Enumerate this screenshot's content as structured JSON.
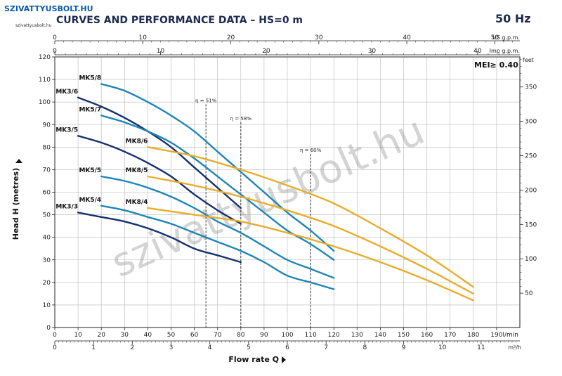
{
  "header": {
    "logo_text": "SZIVATTYUSBOLT.HU",
    "logo_sub": "szivattyusbolt.hu",
    "title": "CURVES AND PERFORMANCE DATA  –  HS=0 m",
    "frequency": "50 Hz",
    "mei": "MEI≥ 0.40",
    "watermark": "szivattyusbolt.hu"
  },
  "colors": {
    "mk3": "#16306e",
    "mk5": "#1e86b8",
    "mk8": "#e8ad2b",
    "grid": "#b8b8b8",
    "eta": "#333333",
    "text": "#1d2a4f"
  },
  "chart_data": {
    "type": "line",
    "xlabel": "Flow rate Q",
    "ylabel": "Head H (metres)",
    "xlim": [
      0,
      200
    ],
    "ylim": [
      0,
      120
    ],
    "x_ticks": [
      0,
      10,
      20,
      30,
      40,
      50,
      60,
      70,
      80,
      90,
      100,
      110,
      120,
      130,
      140,
      150,
      160,
      170,
      180,
      190
    ],
    "x_unit": "l/min",
    "y_ticks": [
      0,
      10,
      20,
      30,
      40,
      50,
      60,
      70,
      80,
      90,
      100,
      110,
      120
    ],
    "secondary_axes": {
      "us_gpm": {
        "label": "US g.p.m.",
        "ticks": [
          0,
          10,
          20,
          30,
          40,
          50
        ],
        "factor": 3.785
      },
      "imp_gpm": {
        "label": "Imp g.p.m.",
        "ticks": [
          0,
          10,
          20,
          30,
          40
        ],
        "factor": 4.546
      },
      "m3h": {
        "label": "m³/h",
        "ticks": [
          0,
          1,
          2,
          3,
          4,
          5,
          6,
          7,
          8,
          9,
          10,
          11
        ],
        "factor": 16.667
      },
      "feet": {
        "label": "feet",
        "ticks": [
          50,
          100,
          150,
          200,
          250,
          300,
          350
        ],
        "factor": 0.3048
      }
    },
    "series": [
      {
        "name": "MK3/3",
        "color": "mk3",
        "x": [
          10,
          20,
          30,
          40,
          50,
          60,
          70,
          80
        ],
        "y": [
          51,
          49,
          47,
          44,
          40,
          35,
          32,
          29
        ]
      },
      {
        "name": "MK3/5",
        "color": "mk3",
        "x": [
          10,
          20,
          30,
          40,
          50,
          60,
          70,
          80
        ],
        "y": [
          85,
          82,
          78,
          73,
          67,
          59,
          52,
          46
        ]
      },
      {
        "name": "MK3/6",
        "color": "mk3",
        "x": [
          10,
          20,
          30,
          40,
          50,
          60,
          70,
          80
        ],
        "y": [
          102,
          98,
          93,
          87,
          80,
          71,
          62,
          53
        ]
      },
      {
        "name": "MK5/4",
        "color": "mk5",
        "x": [
          20,
          30,
          40,
          50,
          60,
          70,
          80,
          90,
          100,
          110,
          120
        ],
        "y": [
          54,
          52,
          49,
          46,
          42,
          38,
          34,
          29,
          23,
          20,
          17
        ]
      },
      {
        "name": "MK5/5",
        "color": "mk5",
        "x": [
          20,
          30,
          40,
          50,
          60,
          70,
          80,
          90,
          100,
          110,
          120
        ],
        "y": [
          67,
          65,
          62,
          58,
          53,
          47,
          42,
          36,
          30,
          26,
          22
        ]
      },
      {
        "name": "MK5/7",
        "color": "mk5",
        "x": [
          20,
          30,
          40,
          50,
          60,
          70,
          80,
          90,
          100,
          110,
          120
        ],
        "y": [
          94,
          91,
          87,
          82,
          75,
          67,
          59,
          51,
          43,
          37,
          30
        ]
      },
      {
        "name": "MK5/8",
        "color": "mk5",
        "x": [
          20,
          30,
          40,
          50,
          60,
          70,
          80,
          90,
          100,
          110,
          120
        ],
        "y": [
          108,
          105,
          100,
          94,
          87,
          78,
          69,
          60,
          51,
          43,
          34
        ]
      },
      {
        "name": "MK8/4",
        "color": "mk8",
        "x": [
          40,
          60,
          80,
          100,
          120,
          140,
          160,
          180
        ],
        "y": [
          53,
          50,
          47,
          42,
          36,
          29,
          21,
          12
        ]
      },
      {
        "name": "MK8/5",
        "color": "mk8",
        "x": [
          40,
          60,
          80,
          100,
          120,
          140,
          160,
          180
        ],
        "y": [
          67,
          63,
          58,
          52,
          45,
          36,
          26,
          15
        ]
      },
      {
        "name": "MK8/6",
        "color": "mk8",
        "x": [
          40,
          60,
          80,
          100,
          120,
          140,
          160,
          180
        ],
        "y": [
          80,
          76,
          70,
          63,
          55,
          44,
          32,
          18
        ]
      }
    ],
    "efficiency_lines": [
      {
        "label": "η = 51%",
        "x": 65,
        "y_top": 99
      },
      {
        "label": "η = 58%",
        "x": 80,
        "y_top": 91
      },
      {
        "label": "η = 60%",
        "x": 110,
        "y_top": 77
      }
    ]
  }
}
